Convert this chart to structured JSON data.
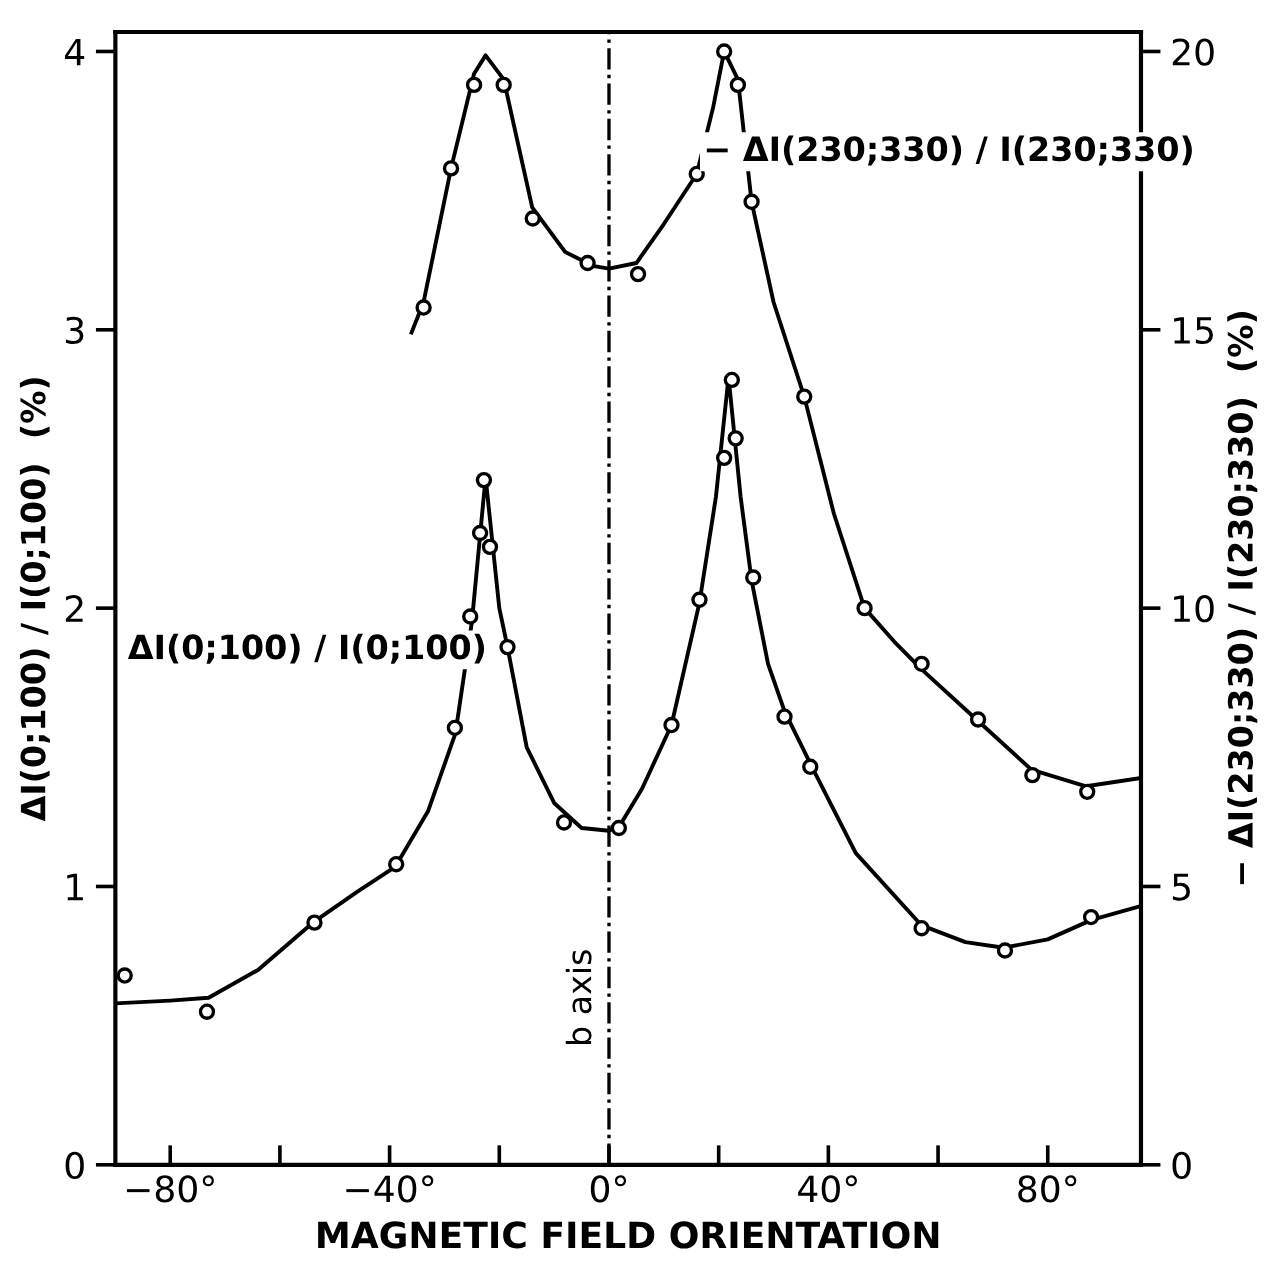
{
  "chart_data": {
    "type": "scatter",
    "xlabel": "MAGNETIC FIELD ORIENTATION",
    "ylabel": "ΔI(0;100) / I(0;100)  (%)",
    "y2label": "− ΔI(230;330) / I(230;330)  (%)",
    "xlim": [
      -90,
      97
    ],
    "xticks": [
      {
        "value": -80,
        "label": "−80°"
      },
      {
        "value": -60,
        "label": null
      },
      {
        "value": -40,
        "label": "−40°"
      },
      {
        "value": -20,
        "label": null
      },
      {
        "value": 0,
        "label": "0°"
      },
      {
        "value": 20,
        "label": null
      },
      {
        "value": 40,
        "label": "40°"
      },
      {
        "value": 60,
        "label": null
      },
      {
        "value": 80,
        "label": "80°"
      }
    ],
    "ylim": [
      0,
      4.07
    ],
    "yticks": [
      0,
      1,
      2,
      3,
      4
    ],
    "y2lim": [
      0,
      20.35
    ],
    "y2ticks": [
      0,
      5,
      10,
      15,
      20
    ],
    "grid": false,
    "legend": false,
    "ref_lines": [
      {
        "axis": "x",
        "value": 0,
        "label": "b axis",
        "line_style": "dashdot",
        "color": "#000000"
      }
    ],
    "series": [
      {
        "axis": "y",
        "color": "#000000",
        "marker": "circle",
        "x": [
          -88.3,
          -73.3,
          -53.7,
          -38.8,
          -28.1,
          -25.3,
          -23.5,
          -22.8,
          -21.7,
          -18.5,
          -8.2,
          1.8,
          11.4,
          16.5,
          21.0,
          22.4,
          23.1,
          26.3,
          32.0,
          36.7,
          57.0,
          72.2,
          87.9
        ],
        "values": [
          0.68,
          0.55,
          0.87,
          1.08,
          1.57,
          1.97,
          2.27,
          2.46,
          2.22,
          1.86,
          1.23,
          1.21,
          1.58,
          2.03,
          2.54,
          2.82,
          2.61,
          2.11,
          1.61,
          1.43,
          0.85,
          0.77,
          0.89
        ]
      },
      {
        "type": "line",
        "axis": "y",
        "name": "ΔI(0;100) / I(0;100)",
        "color": "#000000",
        "marker": "none",
        "line_style": "solid",
        "x": [
          -90,
          -80,
          -73,
          -64,
          -54,
          -46,
          -39,
          -33,
          -28,
          -25,
          -22.5,
          -20,
          -18.5,
          -15,
          -10,
          -5,
          0,
          2,
          6,
          11.4,
          16.5,
          19.5,
          21.8,
          24,
          26,
          29,
          32,
          37,
          45,
          57,
          65,
          72,
          80,
          88,
          97
        ],
        "values": [
          0.58,
          0.59,
          0.6,
          0.7,
          0.87,
          0.98,
          1.07,
          1.27,
          1.55,
          1.95,
          2.47,
          2.0,
          1.86,
          1.5,
          1.3,
          1.21,
          1.2,
          1.22,
          1.35,
          1.58,
          2.02,
          2.4,
          2.83,
          2.4,
          2.1,
          1.8,
          1.63,
          1.43,
          1.12,
          0.86,
          0.8,
          0.78,
          0.81,
          0.88,
          0.93
        ]
      },
      {
        "axis": "y2",
        "color": "#000000",
        "marker": "circle",
        "x": [
          -33.8,
          -28.8,
          -24.6,
          -19.2,
          -13.9,
          -3.9,
          5.3,
          16.0,
          21.0,
          23.5,
          26.0,
          35.6,
          46.6,
          57.0,
          67.3,
          77.2,
          87.2
        ],
        "values": [
          15.4,
          17.9,
          19.4,
          19.4,
          17.0,
          16.2,
          16.0,
          17.8,
          20.0,
          19.4,
          17.3,
          13.8,
          10.0,
          9.0,
          8.0,
          7.0,
          6.7
        ]
      },
      {
        "type": "line",
        "axis": "y2",
        "name": "− ΔI(230;330) / I(230;330)",
        "color": "#000000",
        "marker": "none",
        "line_style": "solid",
        "x": [
          -36,
          -33.8,
          -28.8,
          -24.6,
          -22.5,
          -19.2,
          -14,
          -8,
          -3,
          0,
          5,
          10,
          16,
          19,
          21,
          23.5,
          26,
          30,
          35.6,
          41,
          46.6,
          52,
          57,
          67,
          77,
          87,
          97
        ],
        "values": [
          14.95,
          15.5,
          17.9,
          19.6,
          19.93,
          19.5,
          17.2,
          16.4,
          16.15,
          16.1,
          16.2,
          16.9,
          17.8,
          19.0,
          20.0,
          19.5,
          17.3,
          15.5,
          13.8,
          11.7,
          10.0,
          9.4,
          8.9,
          8.0,
          7.1,
          6.8,
          6.95
        ]
      }
    ]
  }
}
